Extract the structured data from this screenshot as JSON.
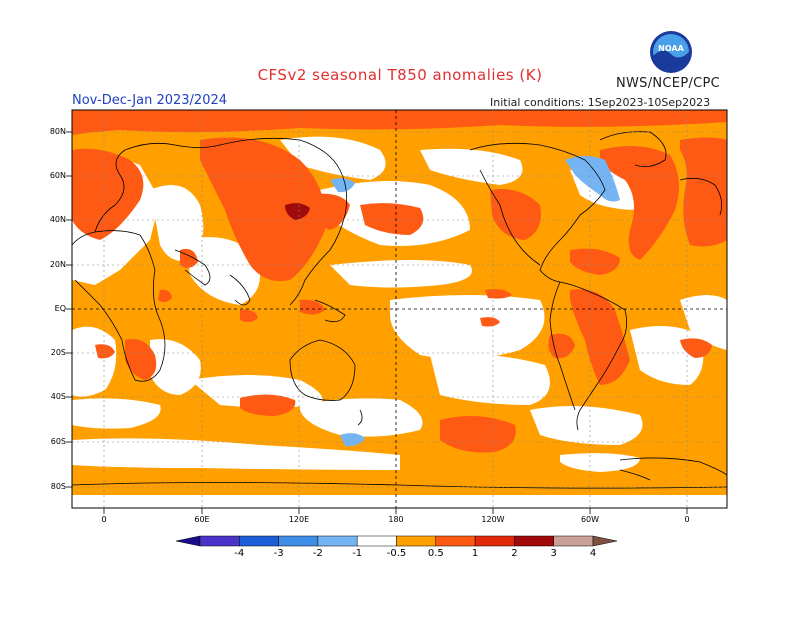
{
  "header": {
    "title": "CFSv2 seasonal T850 anomalies (K)",
    "period": "Nov-Dec-Jan 2023/2024",
    "agency": "NWS/NCEP/CPC",
    "initial_conditions": "Initial conditions: 1Sep2023-10Sep2023"
  },
  "logo": {
    "icon": "noaa-logo-icon",
    "text": "NOAA"
  },
  "map": {
    "lat_labels": [
      "80N",
      "60N",
      "40N",
      "20N",
      "EQ",
      "20S",
      "40S",
      "60S",
      "80S"
    ],
    "lon_labels": [
      "0",
      "60E",
      "120E",
      "180",
      "120W",
      "60W",
      "0"
    ]
  },
  "colorbar": {
    "labels": [
      "-4",
      "-3",
      "-2",
      "-1",
      "-0.5",
      "0.5",
      "1",
      "2",
      "3",
      "4"
    ],
    "colors": [
      "#1a0d8c",
      "#4a32c8",
      "#1c5fd6",
      "#3e8de6",
      "#74b4f2",
      "#ffffff",
      "#ffa000",
      "#ff5a14",
      "#e02a0a",
      "#a00a0a",
      "#c8a096",
      "#805040"
    ]
  }
}
